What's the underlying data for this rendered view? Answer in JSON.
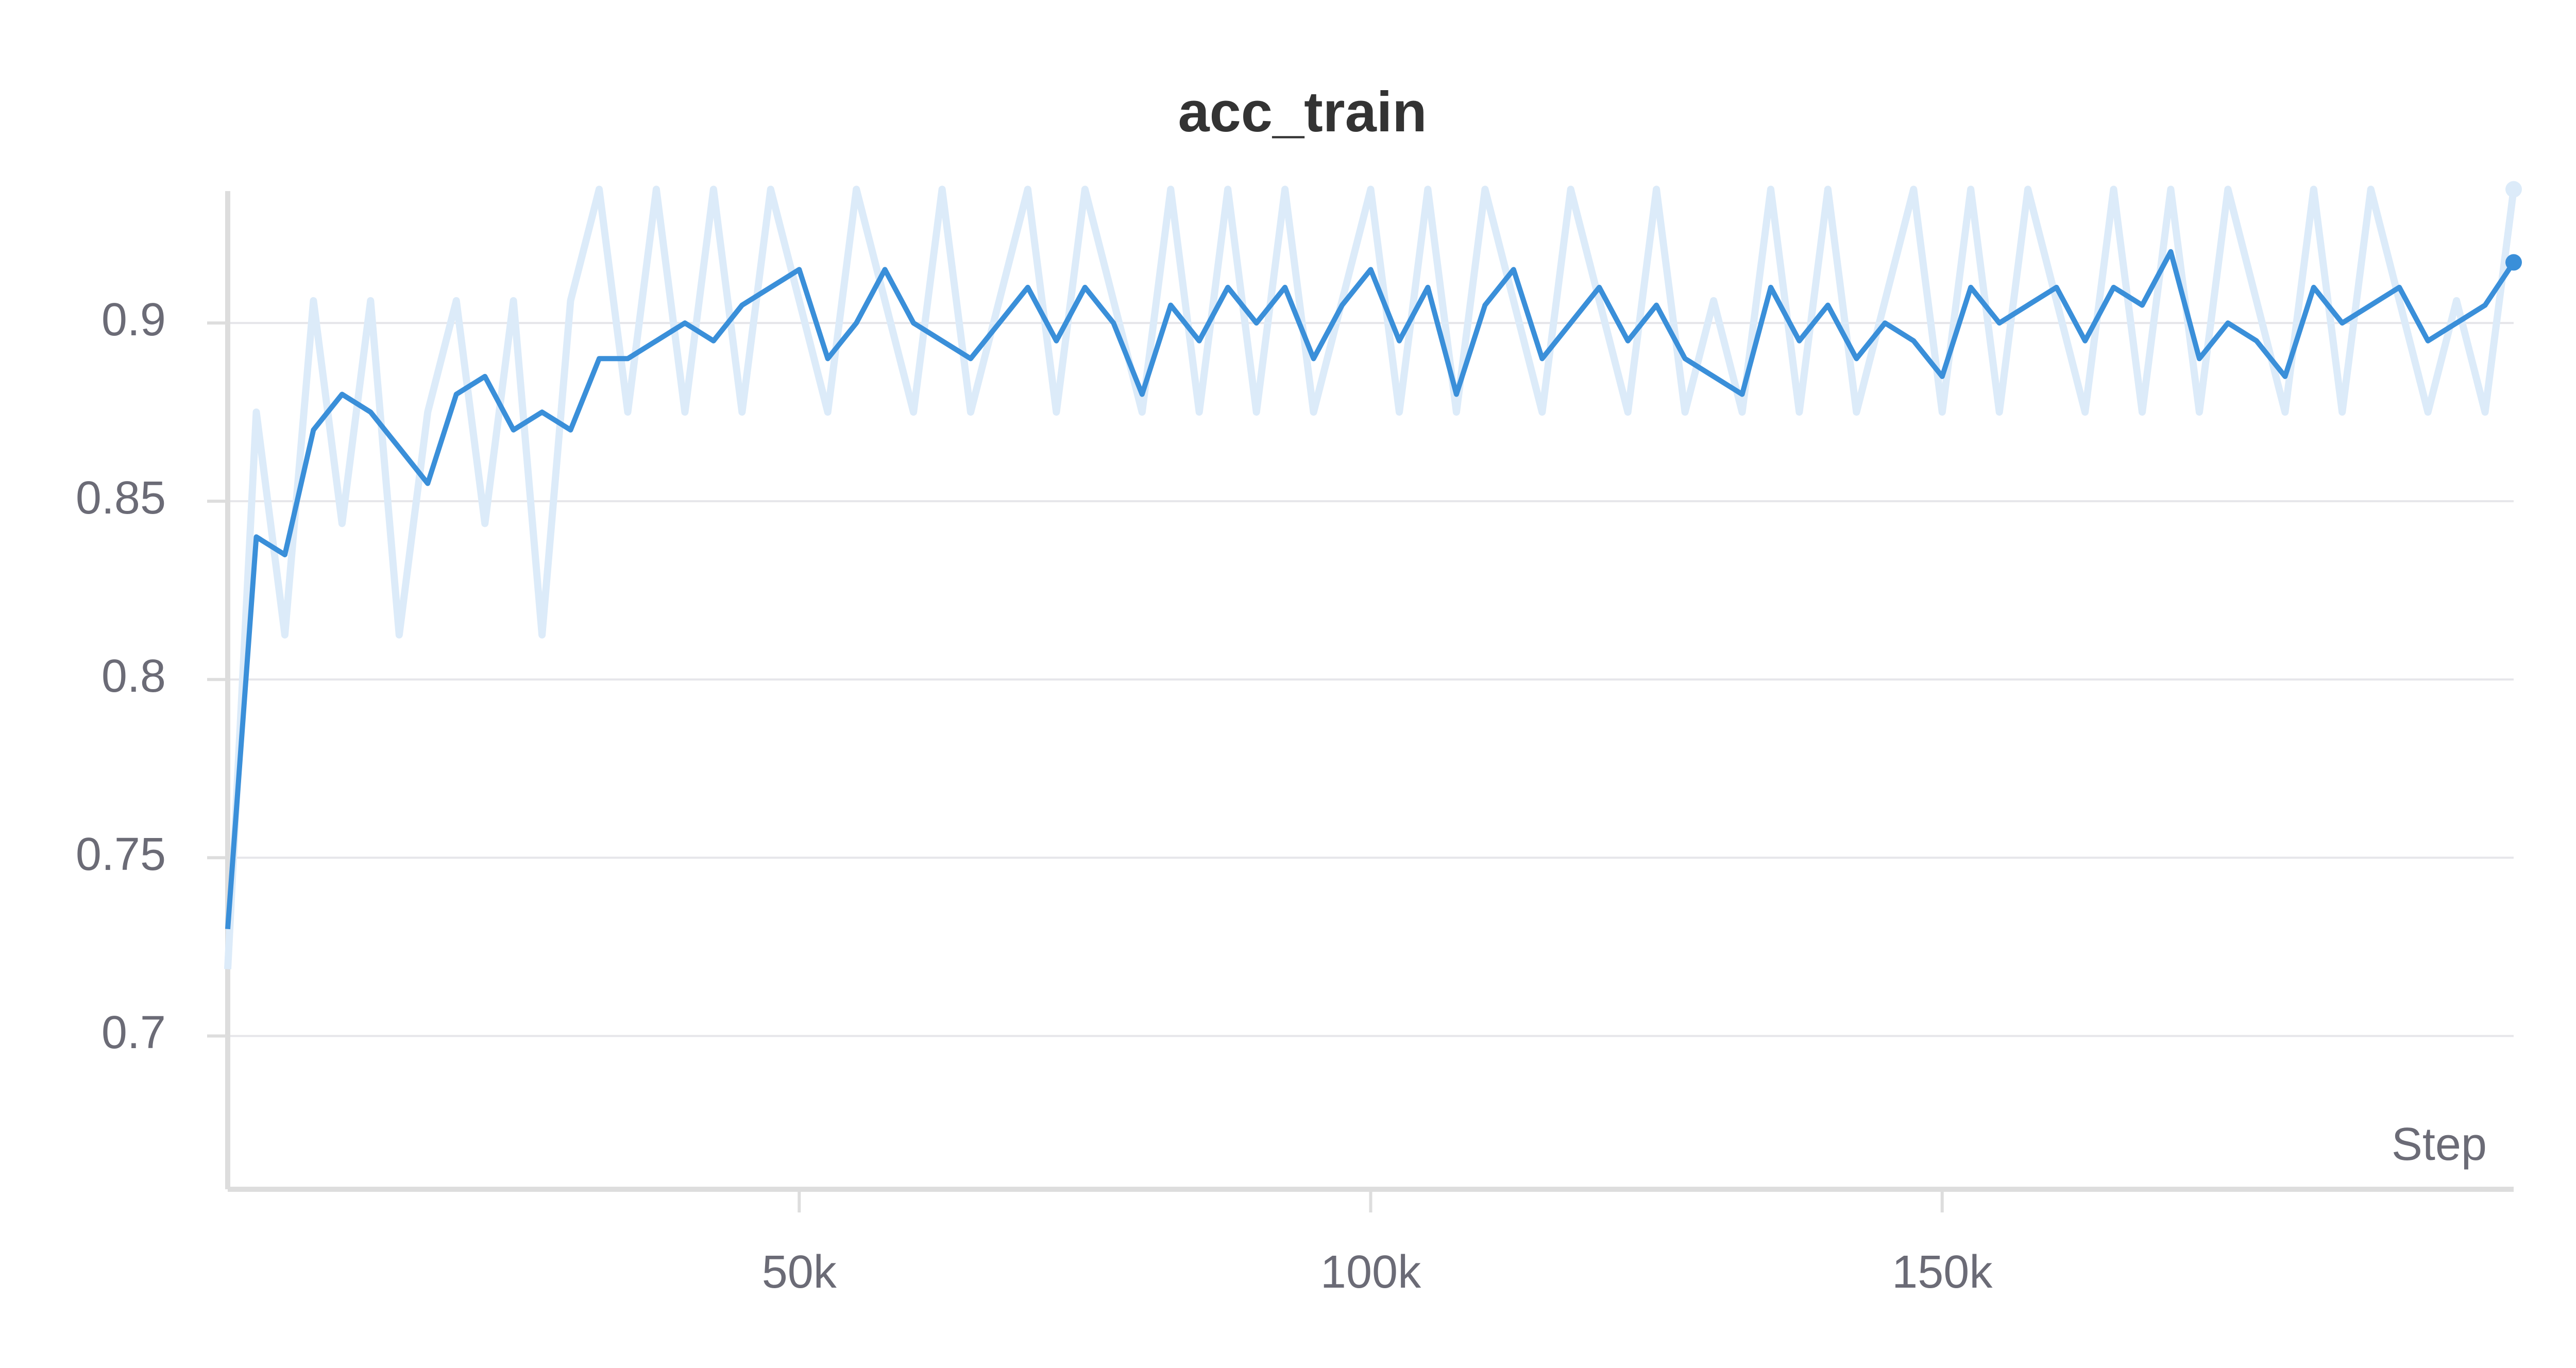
{
  "chart_data": {
    "type": "line",
    "title": "acc_train",
    "x_label": "Step",
    "x": [
      0,
      2500,
      5000,
      7500,
      10000,
      12500,
      15000,
      17500,
      20000,
      22500,
      25000,
      27500,
      30000,
      32500,
      35000,
      37500,
      40000,
      42500,
      45000,
      47500,
      50000,
      52500,
      55000,
      57500,
      60000,
      62500,
      65000,
      67500,
      70000,
      72500,
      75000,
      77500,
      80000,
      82500,
      85000,
      87500,
      90000,
      92500,
      95000,
      97500,
      100000,
      102500,
      105000,
      107500,
      110000,
      112500,
      115000,
      117500,
      120000,
      122500,
      125000,
      127500,
      130000,
      132500,
      135000,
      137500,
      140000,
      142500,
      145000,
      147500,
      150000,
      152500,
      155000,
      157500,
      160000,
      162500,
      165000,
      167500,
      170000,
      172500,
      175000,
      177500,
      180000,
      182500,
      185000,
      187500,
      190000,
      192500,
      195000,
      197500,
      200000
    ],
    "series": [
      {
        "color": "#dcebf9",
        "values": [
          0.71875,
          0.875,
          0.8125,
          0.90625,
          0.84375,
          0.90625,
          0.8125,
          0.875,
          0.90625,
          0.84375,
          0.90625,
          0.8125,
          0.90625,
          0.9375,
          0.875,
          0.9375,
          0.875,
          0.9375,
          0.875,
          0.9375,
          0.90625,
          0.875,
          0.9375,
          0.90625,
          0.875,
          0.9375,
          0.875,
          0.90625,
          0.9375,
          0.875,
          0.9375,
          0.90625,
          0.875,
          0.9375,
          0.875,
          0.9375,
          0.875,
          0.9375,
          0.875,
          0.90625,
          0.9375,
          0.875,
          0.9375,
          0.875,
          0.9375,
          0.90625,
          0.875,
          0.9375,
          0.90625,
          0.875,
          0.9375,
          0.875,
          0.90625,
          0.875,
          0.9375,
          0.875,
          0.9375,
          0.875,
          0.90625,
          0.9375,
          0.875,
          0.9375,
          0.875,
          0.9375,
          0.90625,
          0.875,
          0.9375,
          0.875,
          0.9375,
          0.875,
          0.9375,
          0.90625,
          0.875,
          0.9375,
          0.875,
          0.9375,
          0.90625,
          0.875,
          0.90625,
          0.875,
          0.9375
        ]
      },
      {
        "color": "#3a8fd9",
        "values": [
          0.73,
          0.84,
          0.835,
          0.87,
          0.88,
          0.875,
          0.865,
          0.855,
          0.88,
          0.885,
          0.87,
          0.875,
          0.87,
          0.89,
          0.89,
          0.895,
          0.9,
          0.895,
          0.905,
          0.91,
          0.915,
          0.89,
          0.9,
          0.915,
          0.9,
          0.895,
          0.89,
          0.9,
          0.91,
          0.895,
          0.91,
          0.9,
          0.88,
          0.905,
          0.895,
          0.91,
          0.9,
          0.91,
          0.89,
          0.905,
          0.915,
          0.895,
          0.91,
          0.88,
          0.905,
          0.915,
          0.89,
          0.9,
          0.91,
          0.895,
          0.905,
          0.89,
          0.885,
          0.88,
          0.91,
          0.895,
          0.905,
          0.89,
          0.9,
          0.895,
          0.885,
          0.91,
          0.9,
          0.905,
          0.91,
          0.895,
          0.91,
          0.905,
          0.92,
          0.89,
          0.9,
          0.895,
          0.885,
          0.91,
          0.9,
          0.905,
          0.91,
          0.895,
          0.9,
          0.905,
          0.917
        ]
      }
    ],
    "xlim": [
      0,
      200000
    ],
    "xticks": [
      {
        "value": 50000,
        "label": "50k"
      },
      {
        "value": 100000,
        "label": "100k"
      },
      {
        "value": 150000,
        "label": "150k"
      }
    ],
    "ylim": [
      0.657,
      0.937
    ],
    "yticks": [
      0.7,
      0.75,
      0.8,
      0.85,
      0.9
    ],
    "grid": true
  }
}
